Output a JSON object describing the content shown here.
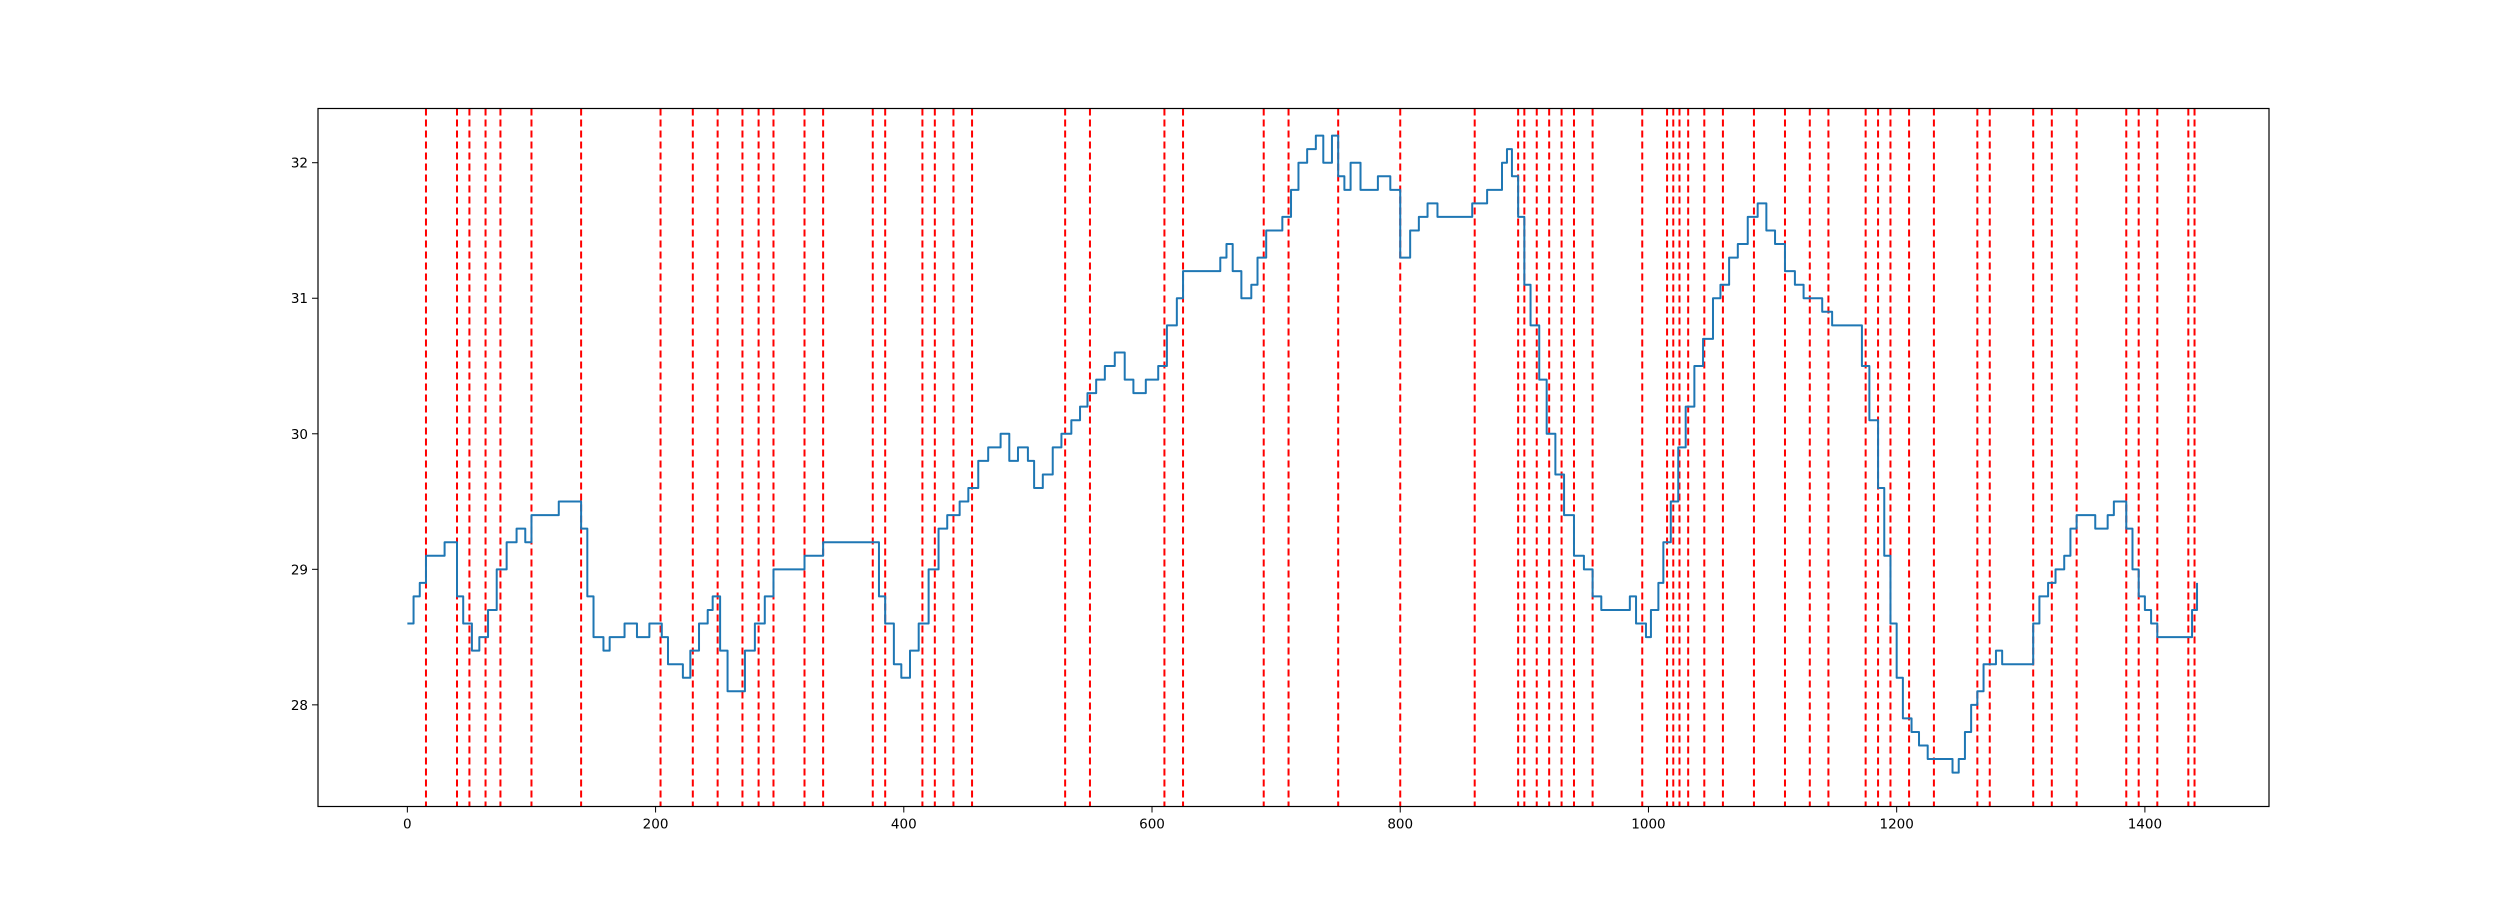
{
  "chart_data": {
    "type": "line",
    "title": "",
    "xlabel": "",
    "ylabel": "",
    "xlim": [
      -72,
      1500
    ],
    "ylim": [
      27.25,
      32.4
    ],
    "x_ticks": [
      0,
      200,
      400,
      600,
      800,
      1000,
      1200,
      1400
    ],
    "y_ticks": [
      28,
      29,
      30,
      31,
      32
    ],
    "grid": false,
    "legend": "none",
    "colors": {
      "series": "#1f77b4",
      "markers": "#ff0000"
    },
    "series": [
      {
        "points": [
          [
            0,
            28.6
          ],
          [
            5,
            28.8
          ],
          [
            10,
            28.9
          ],
          [
            15,
            29.1
          ],
          [
            25,
            29.1
          ],
          [
            30,
            29.2
          ],
          [
            38,
            29.2
          ],
          [
            40,
            28.8
          ],
          [
            45,
            28.6
          ],
          [
            52,
            28.4
          ],
          [
            58,
            28.5
          ],
          [
            65,
            28.7
          ],
          [
            72,
            29.0
          ],
          [
            80,
            29.2
          ],
          [
            88,
            29.3
          ],
          [
            95,
            29.2
          ],
          [
            100,
            29.4
          ],
          [
            118,
            29.4
          ],
          [
            122,
            29.5
          ],
          [
            135,
            29.5
          ],
          [
            140,
            29.3
          ],
          [
            145,
            28.8
          ],
          [
            150,
            28.5
          ],
          [
            158,
            28.4
          ],
          [
            163,
            28.5
          ],
          [
            175,
            28.6
          ],
          [
            185,
            28.5
          ],
          [
            195,
            28.6
          ],
          [
            205,
            28.5
          ],
          [
            210,
            28.3
          ],
          [
            218,
            28.3
          ],
          [
            222,
            28.2
          ],
          [
            228,
            28.4
          ],
          [
            235,
            28.6
          ],
          [
            242,
            28.7
          ],
          [
            246,
            28.8
          ],
          [
            252,
            28.4
          ],
          [
            258,
            28.1
          ],
          [
            267,
            28.1
          ],
          [
            272,
            28.4
          ],
          [
            280,
            28.6
          ],
          [
            288,
            28.8
          ],
          [
            295,
            29.0
          ],
          [
            315,
            29.0
          ],
          [
            320,
            29.1
          ],
          [
            335,
            29.2
          ],
          [
            375,
            29.2
          ],
          [
            380,
            28.8
          ],
          [
            385,
            28.6
          ],
          [
            392,
            28.3
          ],
          [
            398,
            28.2
          ],
          [
            405,
            28.4
          ],
          [
            412,
            28.6
          ],
          [
            420,
            29.0
          ],
          [
            428,
            29.3
          ],
          [
            435,
            29.4
          ],
          [
            445,
            29.5
          ],
          [
            452,
            29.6
          ],
          [
            460,
            29.8
          ],
          [
            468,
            29.9
          ],
          [
            478,
            30.0
          ],
          [
            485,
            29.8
          ],
          [
            492,
            29.9
          ],
          [
            500,
            29.8
          ],
          [
            505,
            29.6
          ],
          [
            512,
            29.7
          ],
          [
            520,
            29.9
          ],
          [
            527,
            30.0
          ],
          [
            535,
            30.1
          ],
          [
            542,
            30.2
          ],
          [
            548,
            30.3
          ],
          [
            555,
            30.4
          ],
          [
            562,
            30.5
          ],
          [
            570,
            30.6
          ],
          [
            578,
            30.4
          ],
          [
            585,
            30.3
          ],
          [
            595,
            30.4
          ],
          [
            605,
            30.5
          ],
          [
            612,
            30.8
          ],
          [
            620,
            31.0
          ],
          [
            625,
            31.2
          ],
          [
            648,
            31.2
          ],
          [
            655,
            31.3
          ],
          [
            660,
            31.4
          ],
          [
            665,
            31.2
          ],
          [
            672,
            31.0
          ],
          [
            680,
            31.1
          ],
          [
            685,
            31.3
          ],
          [
            692,
            31.5
          ],
          [
            698,
            31.5
          ],
          [
            705,
            31.6
          ],
          [
            712,
            31.8
          ],
          [
            718,
            32.0
          ],
          [
            725,
            32.1
          ],
          [
            732,
            32.2
          ],
          [
            738,
            32.0
          ],
          [
            745,
            32.2
          ],
          [
            750,
            31.9
          ],
          [
            755,
            31.8
          ],
          [
            760,
            32.0
          ],
          [
            768,
            31.8
          ],
          [
            775,
            31.8
          ],
          [
            782,
            31.9
          ],
          [
            792,
            31.8
          ],
          [
            800,
            31.3
          ],
          [
            808,
            31.5
          ],
          [
            815,
            31.6
          ],
          [
            822,
            31.7
          ],
          [
            830,
            31.6
          ],
          [
            850,
            31.6
          ],
          [
            858,
            31.7
          ],
          [
            870,
            31.8
          ],
          [
            878,
            31.8
          ],
          [
            882,
            32.0
          ],
          [
            886,
            32.1
          ],
          [
            890,
            31.9
          ],
          [
            895,
            31.6
          ],
          [
            900,
            31.1
          ],
          [
            905,
            30.8
          ],
          [
            912,
            30.4
          ],
          [
            918,
            30.0
          ],
          [
            925,
            29.7
          ],
          [
            932,
            29.4
          ],
          [
            940,
            29.1
          ],
          [
            948,
            29.0
          ],
          [
            955,
            28.8
          ],
          [
            962,
            28.7
          ],
          [
            985,
            28.8
          ],
          [
            990,
            28.6
          ],
          [
            998,
            28.5
          ],
          [
            1002,
            28.7
          ],
          [
            1008,
            28.9
          ],
          [
            1012,
            29.2
          ],
          [
            1018,
            29.5
          ],
          [
            1024,
            29.9
          ],
          [
            1030,
            30.2
          ],
          [
            1037,
            30.5
          ],
          [
            1044,
            30.7
          ],
          [
            1052,
            31.0
          ],
          [
            1058,
            31.1
          ],
          [
            1065,
            31.3
          ],
          [
            1072,
            31.4
          ],
          [
            1080,
            31.6
          ],
          [
            1088,
            31.7
          ],
          [
            1095,
            31.5
          ],
          [
            1102,
            31.4
          ],
          [
            1110,
            31.2
          ],
          [
            1118,
            31.1
          ],
          [
            1125,
            31.0
          ],
          [
            1132,
            31.0
          ],
          [
            1140,
            30.9
          ],
          [
            1148,
            30.8
          ],
          [
            1165,
            30.8
          ],
          [
            1172,
            30.5
          ],
          [
            1178,
            30.1
          ],
          [
            1185,
            29.6
          ],
          [
            1190,
            29.1
          ],
          [
            1195,
            28.6
          ],
          [
            1200,
            28.2
          ],
          [
            1205,
            27.9
          ],
          [
            1212,
            27.8
          ],
          [
            1218,
            27.7
          ],
          [
            1225,
            27.6
          ],
          [
            1240,
            27.6
          ],
          [
            1245,
            27.5
          ],
          [
            1250,
            27.6
          ],
          [
            1255,
            27.8
          ],
          [
            1260,
            28.0
          ],
          [
            1265,
            28.1
          ],
          [
            1270,
            28.3
          ],
          [
            1275,
            28.3
          ],
          [
            1280,
            28.4
          ],
          [
            1285,
            28.3
          ],
          [
            1305,
            28.3
          ],
          [
            1310,
            28.6
          ],
          [
            1315,
            28.8
          ],
          [
            1322,
            28.9
          ],
          [
            1328,
            29.0
          ],
          [
            1335,
            29.1
          ],
          [
            1340,
            29.3
          ],
          [
            1345,
            29.4
          ],
          [
            1355,
            29.4
          ],
          [
            1360,
            29.3
          ],
          [
            1365,
            29.3
          ],
          [
            1370,
            29.4
          ],
          [
            1375,
            29.5
          ],
          [
            1380,
            29.5
          ],
          [
            1385,
            29.3
          ],
          [
            1390,
            29.0
          ],
          [
            1395,
            28.8
          ],
          [
            1400,
            28.7
          ],
          [
            1405,
            28.6
          ],
          [
            1410,
            28.5
          ],
          [
            1430,
            28.5
          ],
          [
            1438,
            28.7
          ],
          [
            1442,
            28.9
          ]
        ]
      }
    ],
    "vertical_markers": [
      15,
      40,
      50,
      63,
      75,
      100,
      140,
      204,
      230,
      250,
      270,
      283,
      295,
      320,
      335,
      375,
      385,
      415,
      425,
      440,
      455,
      530,
      550,
      610,
      625,
      690,
      710,
      750,
      800,
      860,
      895,
      900,
      910,
      920,
      930,
      940,
      955,
      995,
      1015,
      1020,
      1025,
      1032,
      1045,
      1060,
      1085,
      1110,
      1130,
      1145,
      1175,
      1185,
      1195,
      1210,
      1230,
      1265,
      1275,
      1310,
      1325,
      1345,
      1385,
      1395,
      1410,
      1435,
      1440
    ]
  }
}
